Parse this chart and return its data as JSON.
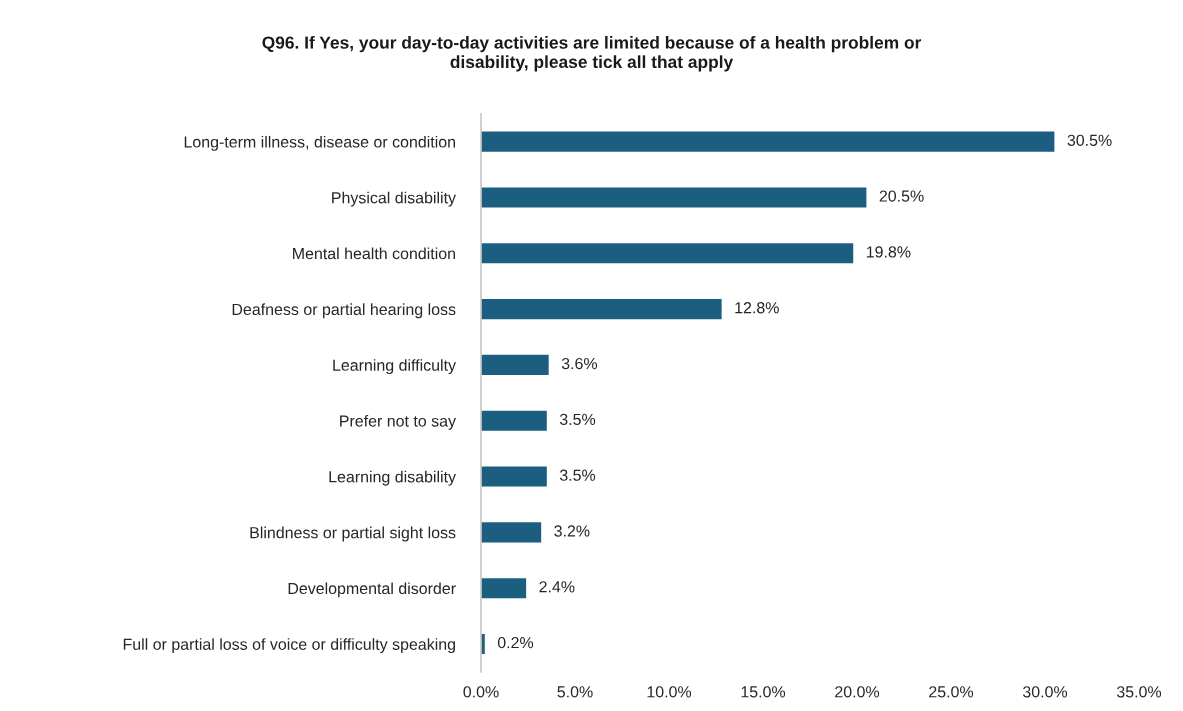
{
  "chart_data": {
    "type": "bar",
    "orientation": "horizontal",
    "title": "Q96. If Yes, your day-to-day activities are limited because of a health problem or\ndisability, please tick all that apply",
    "categories": [
      "Long-term illness, disease or condition",
      "Physical disability",
      "Mental health condition",
      "Deafness or partial hearing loss",
      "Learning difficulty",
      "Prefer not to say",
      "Learning disability",
      "Blindness or partial sight loss",
      "Developmental disorder",
      "Full or partial loss of voice or difficulty speaking"
    ],
    "values": [
      30.5,
      20.5,
      19.8,
      12.8,
      3.6,
      3.5,
      3.5,
      3.2,
      2.4,
      0.2
    ],
    "value_labels": [
      "30.5%",
      "20.5%",
      "19.8%",
      "12.8%",
      "3.6%",
      "3.5%",
      "3.5%",
      "3.2%",
      "2.4%",
      "0.2%"
    ],
    "color": "#1b5e7f",
    "xlim": [
      0,
      35
    ],
    "xticks": [
      {
        "value": 0,
        "label": "0.0%"
      },
      {
        "value": 5,
        "label": "5.0%"
      },
      {
        "value": 10,
        "label": "10.0%"
      },
      {
        "value": 15,
        "label": "15.0%"
      },
      {
        "value": 20,
        "label": "20.0%"
      },
      {
        "value": 25,
        "label": "25.0%"
      },
      {
        "value": 30,
        "label": "30.0%"
      },
      {
        "value": 35,
        "label": "35.0%"
      }
    ]
  }
}
